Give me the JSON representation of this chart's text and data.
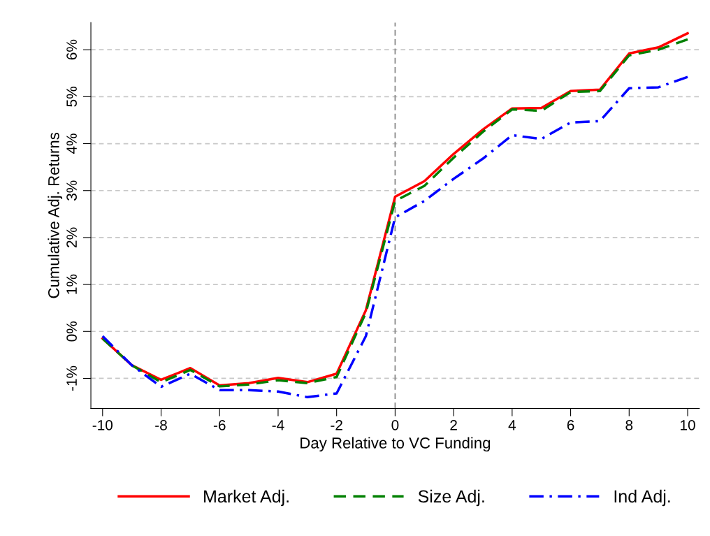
{
  "chart_data": {
    "type": "line",
    "xlabel": "Day Relative to VC Funding",
    "ylabel": "Cumulative Adj. Returns",
    "x": [
      -10,
      -9,
      -8,
      -7,
      -6,
      -5,
      -4,
      -3,
      -2,
      -1,
      0,
      1,
      2,
      3,
      4,
      5,
      6,
      7,
      8,
      9,
      10
    ],
    "series": [
      {
        "name": "Market Adj.",
        "color": "#ff0000",
        "line_style": "solid",
        "values": [
          -0.15,
          -0.72,
          -1.03,
          -0.78,
          -1.15,
          -1.1,
          -0.99,
          -1.08,
          -0.9,
          0.45,
          2.87,
          3.2,
          3.78,
          4.3,
          4.75,
          4.76,
          5.12,
          5.15,
          5.92,
          6.05,
          6.35
        ]
      },
      {
        "name": "Size Adj.",
        "color": "#008000",
        "line_style": "dashed",
        "values": [
          -0.15,
          -0.72,
          -1.08,
          -0.82,
          -1.17,
          -1.13,
          -1.04,
          -1.1,
          -0.97,
          0.4,
          2.78,
          3.1,
          3.7,
          4.25,
          4.73,
          4.7,
          5.1,
          5.12,
          5.88,
          6.0,
          6.22
        ]
      },
      {
        "name": "Ind Adj.",
        "color": "#0000ff",
        "line_style": "dashdot",
        "values": [
          -0.1,
          -0.72,
          -1.18,
          -0.9,
          -1.25,
          -1.25,
          -1.28,
          -1.4,
          -1.32,
          -0.1,
          2.43,
          2.78,
          3.25,
          3.68,
          4.18,
          4.1,
          4.45,
          4.48,
          5.18,
          5.2,
          5.42
        ]
      }
    ],
    "xlim": [
      -10.4,
      10.4
    ],
    "xticks": [
      -10,
      -8,
      -6,
      -4,
      -2,
      0,
      2,
      4,
      6,
      8,
      10
    ],
    "ylim": [
      -1.64,
      6.58
    ],
    "yticks": [
      {
        "value": -1,
        "label": "-1%"
      },
      {
        "value": 0,
        "label": "0%"
      },
      {
        "value": 1,
        "label": "1%"
      },
      {
        "value": 2,
        "label": "2%"
      },
      {
        "value": 3,
        "label": "3%"
      },
      {
        "value": 4,
        "label": "4%"
      },
      {
        "value": 5,
        "label": "5%"
      },
      {
        "value": 6,
        "label": "6%"
      }
    ],
    "ref_lines": [
      {
        "axis": "x",
        "value": 0,
        "color": "#808080",
        "line_style": "dashed"
      }
    ],
    "grid": "y",
    "legend": "bottom",
    "marker": "none"
  }
}
